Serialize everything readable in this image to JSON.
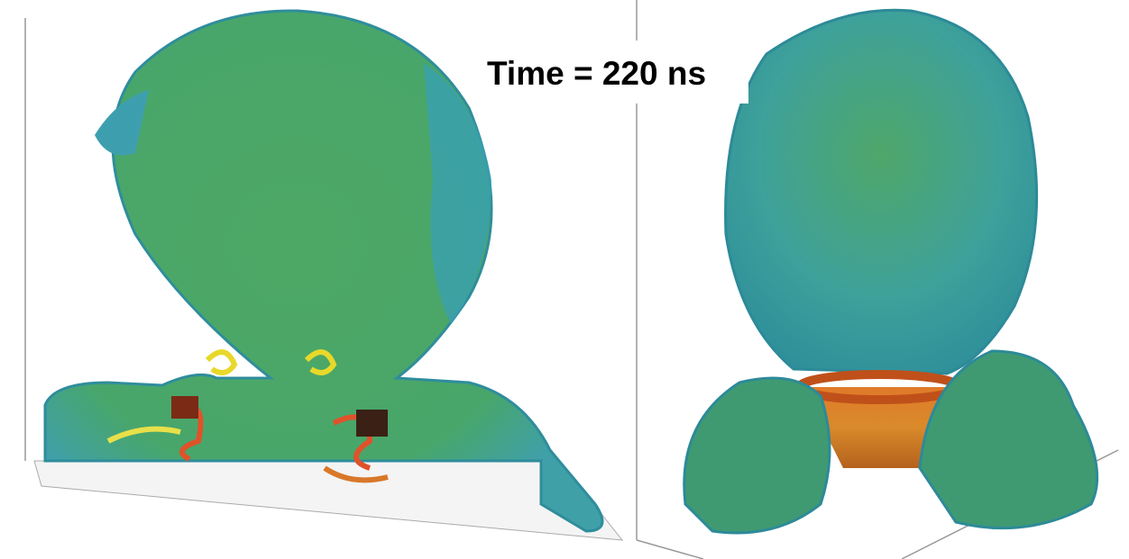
{
  "annotation": "Time = 220 ns"
}
